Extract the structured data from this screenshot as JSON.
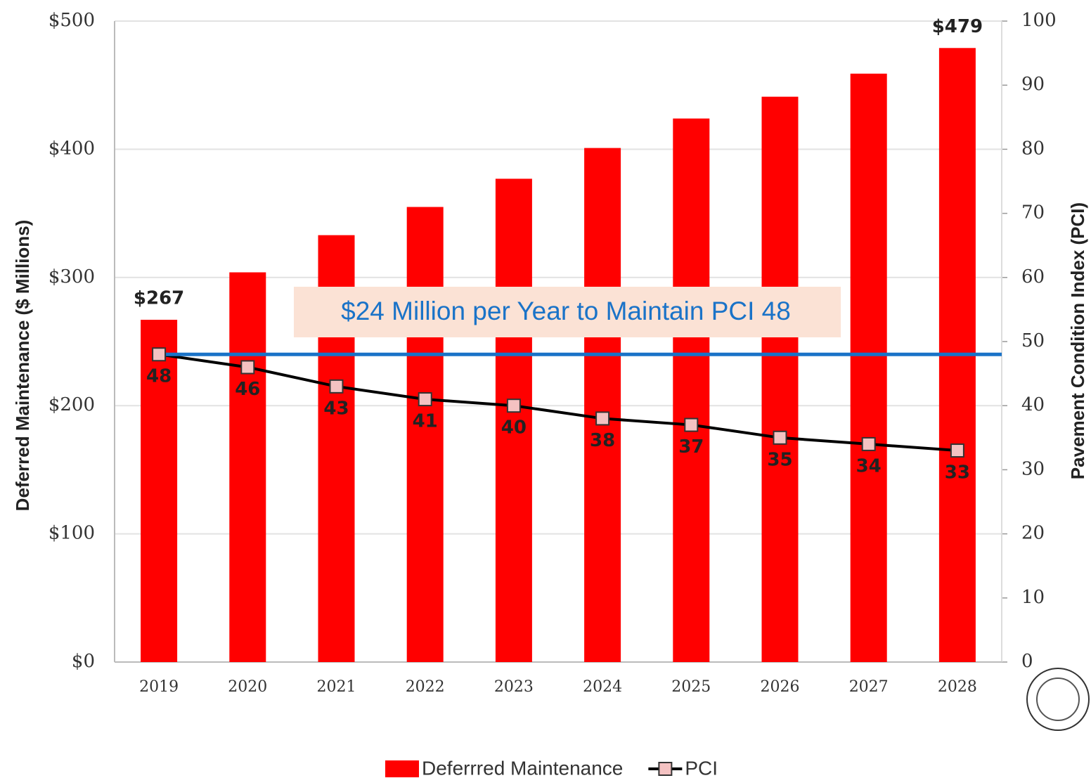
{
  "chart_data": {
    "type": "bar",
    "categories": [
      "2019",
      "2020",
      "2021",
      "2022",
      "2023",
      "2024",
      "2025",
      "2026",
      "2027",
      "2028"
    ],
    "series": [
      {
        "name": "Deferrred Maintenance",
        "type": "bar",
        "color": "#ff0000",
        "axis": "y",
        "values": [
          267,
          304,
          333,
          355,
          377,
          401,
          424,
          441,
          459,
          479
        ],
        "value_labels": [
          "$267",
          null,
          null,
          null,
          null,
          null,
          null,
          null,
          null,
          "$479"
        ]
      },
      {
        "name": "PCI",
        "type": "line",
        "color": "#000000",
        "marker_color": "#f4c2c2",
        "axis": "y2",
        "values": [
          48,
          46,
          43,
          41,
          40,
          38,
          37,
          35,
          34,
          33
        ]
      }
    ],
    "ylabel": "Deferred Maintenance ($ Millions)",
    "y2label": "Pavement Condition Index (PCI)",
    "ylim": [
      0,
      500
    ],
    "yticks": [
      {
        "value": 0,
        "label": "$0"
      },
      {
        "value": 100,
        "label": "$100"
      },
      {
        "value": 200,
        "label": "$200"
      },
      {
        "value": 300,
        "label": "$300"
      },
      {
        "value": 400,
        "label": "$400"
      },
      {
        "value": 500,
        "label": "$500"
      }
    ],
    "y2lim": [
      0,
      100
    ],
    "y2ticks": [
      0,
      10,
      20,
      30,
      40,
      50,
      60,
      70,
      80,
      90,
      100
    ],
    "reference_line": {
      "value": 48,
      "axis": "y2",
      "color": "#1a73c8",
      "label": "$24 Million per Year to Maintain PCI 48"
    },
    "grid": true,
    "legend": "bottom"
  }
}
